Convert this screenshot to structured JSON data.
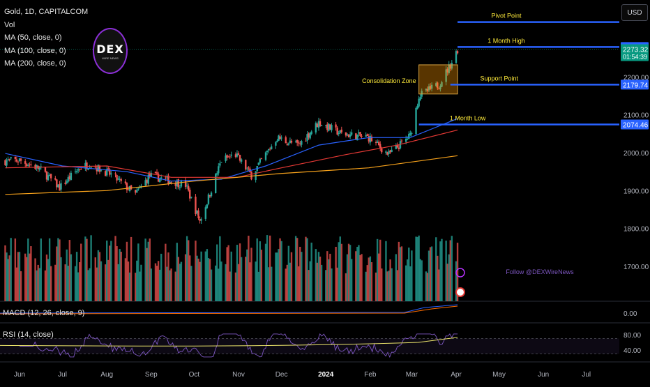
{
  "legend": {
    "symbol": "Gold, 1D, CAPITALCOM",
    "vol": "Vol",
    "ma50": "MA (50, close, 0)",
    "ma100": "MA (100, close, 0)",
    "ma200": "MA (200, close, 0)"
  },
  "currency_button": "USD",
  "logo": {
    "text": "DEX",
    "sub": "WIRE NEWS"
  },
  "follow_text": "Follow @DEXWireNews",
  "macd_label": "MACD (12, 26, close, 9)",
  "rsi_label": "RSI (14, close)",
  "colors": {
    "up": "#26a69a",
    "down": "#ef5350",
    "ma50": "#2962ff",
    "ma100": "#e53935",
    "ma200": "#f7a21b",
    "levels": "#2962ff",
    "annotation": "#ffeb3b",
    "rsi": "#ece56b",
    "macd": "#2962ff",
    "signal": "#ff6d00"
  },
  "chart_data": {
    "type": "candlestick",
    "ylim": [
      1760,
      2345
    ],
    "y_ticks": [
      "2200.00",
      "2100.00",
      "2000.00",
      "1900.00",
      "1800.00",
      "1700.00"
    ],
    "x_ticks": [
      "Jun",
      "Jul",
      "Aug",
      "Sep",
      "Oct",
      "Nov",
      "Dec",
      "2024",
      "Feb",
      "Mar",
      "Apr",
      "May",
      "Jun",
      "Jul"
    ],
    "x_tick_dates": [
      "2023-06-01",
      "2023-07-01",
      "2023-08-01",
      "2023-09-01",
      "2023-10-01",
      "2023-11-01",
      "2023-12-01",
      "2024-01-01",
      "2024-02-01",
      "2024-03-01",
      "2024-04-01",
      "2024-05-01",
      "2024-06-01",
      "2024-07-01"
    ],
    "last_close": "2273.32",
    "countdown": "01:54:39",
    "close_path": [
      [
        "2023-05-22",
        1978
      ],
      [
        "2023-06-01",
        1980
      ],
      [
        "2023-06-15",
        1958
      ],
      [
        "2023-06-29",
        1908
      ],
      [
        "2023-07-13",
        1960
      ],
      [
        "2023-07-20",
        1970
      ],
      [
        "2023-08-04",
        1942
      ],
      [
        "2023-08-21",
        1890
      ],
      [
        "2023-08-31",
        1940
      ],
      [
        "2023-09-15",
        1925
      ],
      [
        "2023-09-25",
        1915
      ],
      [
        "2023-10-05",
        1820
      ],
      [
        "2023-10-09",
        1860
      ],
      [
        "2023-10-20",
        1980
      ],
      [
        "2023-10-30",
        1995
      ],
      [
        "2023-11-10",
        1940
      ],
      [
        "2023-11-28",
        2040
      ],
      [
        "2023-12-04",
        2030
      ],
      [
        "2023-12-13",
        2020
      ],
      [
        "2023-12-27",
        2080
      ],
      [
        "2024-01-12",
        2050
      ],
      [
        "2024-01-31",
        2040
      ],
      [
        "2024-02-14",
        1995
      ],
      [
        "2024-02-29",
        2045
      ],
      [
        "2024-03-06",
        2150
      ],
      [
        "2024-03-20",
        2180
      ],
      [
        "2024-03-28",
        2232
      ],
      [
        "2024-04-02",
        2273
      ]
    ],
    "moving_averages": [
      {
        "name": "MA (50, close, 0)",
        "points": [
          [
            "2023-05-22",
            1998
          ],
          [
            "2023-07-01",
            1965
          ],
          [
            "2023-08-15",
            1950
          ],
          [
            "2023-09-15",
            1925
          ],
          [
            "2023-10-20",
            1930
          ],
          [
            "2023-11-20",
            1965
          ],
          [
            "2023-12-27",
            2020
          ],
          [
            "2024-01-31",
            2040
          ],
          [
            "2024-02-29",
            2040
          ],
          [
            "2024-04-02",
            2090
          ]
        ]
      },
      {
        "name": "MA (100, close, 0)",
        "points": [
          [
            "2023-05-22",
            1960
          ],
          [
            "2023-08-01",
            1965
          ],
          [
            "2023-09-15",
            1935
          ],
          [
            "2023-10-31",
            1935
          ],
          [
            "2023-12-01",
            1960
          ],
          [
            "2024-01-15",
            1995
          ],
          [
            "2024-02-20",
            2020
          ],
          [
            "2024-04-02",
            2060
          ]
        ]
      },
      {
        "name": "MA (200, close, 0)",
        "points": [
          [
            "2023-05-22",
            1890
          ],
          [
            "2023-08-01",
            1900
          ],
          [
            "2023-10-01",
            1925
          ],
          [
            "2023-11-30",
            1945
          ],
          [
            "2024-01-31",
            1960
          ],
          [
            "2024-04-02",
            1992
          ]
        ]
      }
    ],
    "levels": [
      {
        "name": "Pivot Point",
        "value": 2345,
        "price_label": ""
      },
      {
        "name": "1 Month High",
        "value": 2279.23,
        "price_label": "2279.23"
      },
      {
        "name": "Support Point",
        "value": 2179.74,
        "price_label": "2179.74"
      },
      {
        "name": "1 Month Low",
        "value": 2074.46,
        "price_label": "2074.46"
      }
    ],
    "zone": {
      "label": "Consolidation Zone",
      "from": "2024-03-06",
      "to": "2024-04-02",
      "low": 2155,
      "high": 2232
    },
    "macd": {
      "tick": "0.00"
    },
    "rsi": {
      "ticks": [
        "80.00",
        "40.00"
      ],
      "upper": 70,
      "lower": 30
    }
  }
}
